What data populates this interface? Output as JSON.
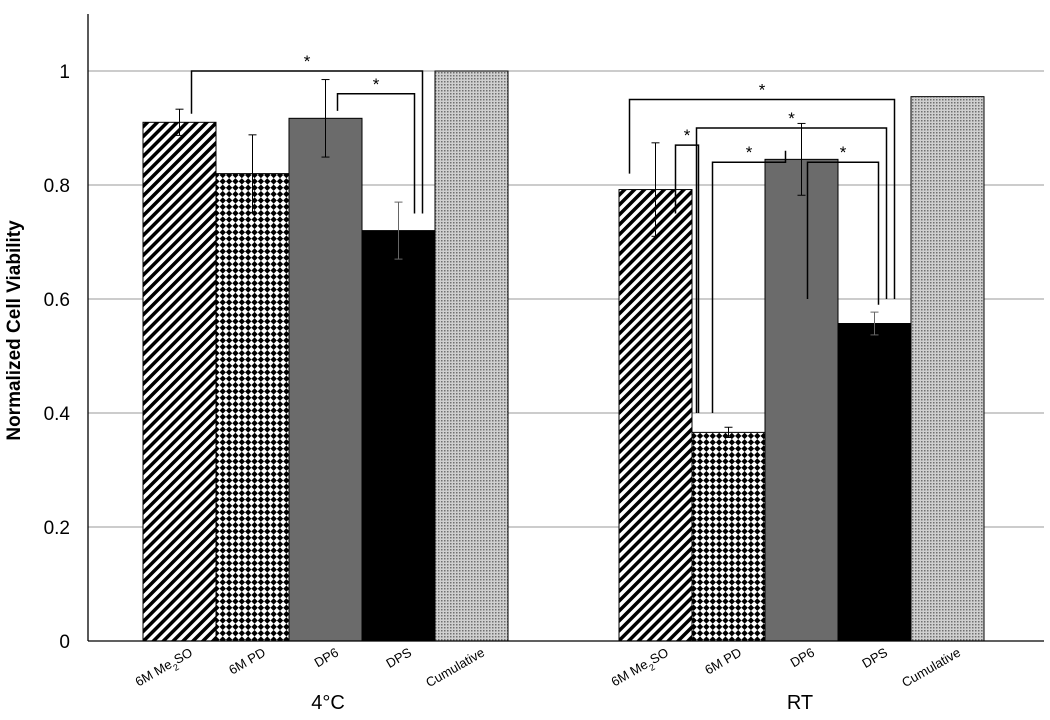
{
  "chart_data": {
    "type": "bar",
    "ylabel": "Normalized Cell Viability",
    "xlabel": "",
    "ylim": [
      0,
      1.1
    ],
    "yticks": [
      0,
      0.2,
      0.4,
      0.6,
      0.8,
      1
    ],
    "ytick_labels": [
      "0",
      "0.2",
      "0.4",
      "0.6",
      "0.8",
      "1"
    ],
    "grid": true,
    "groups": [
      {
        "name": "4°C",
        "categories": [
          {
            "pre": "6M Me",
            "sub": "2",
            "post": "SO"
          },
          {
            "pre": "6M PD",
            "sub": "",
            "post": ""
          },
          {
            "pre": "DP6",
            "sub": "",
            "post": ""
          },
          {
            "pre": "DPS",
            "sub": "",
            "post": ""
          },
          {
            "pre": "Cumulative",
            "sub": "",
            "post": ""
          }
        ],
        "values": [
          0.91,
          0.82,
          0.917,
          0.72,
          1.0
        ],
        "errors": [
          0.023,
          0.068,
          0.068,
          0.05,
          null
        ],
        "significance": [
          {
            "a": 0,
            "b": 3,
            "level": 1.0,
            "label": "*"
          },
          {
            "a": 2,
            "b": 3,
            "level": 0.96,
            "label": "*"
          }
        ]
      },
      {
        "name": "RT",
        "categories": [
          {
            "pre": "6M Me",
            "sub": "2",
            "post": "SO"
          },
          {
            "pre": "6M PD",
            "sub": "",
            "post": ""
          },
          {
            "pre": "DP6",
            "sub": "",
            "post": ""
          },
          {
            "pre": "DPS",
            "sub": "",
            "post": ""
          },
          {
            "pre": "Cumulative",
            "sub": "",
            "post": ""
          }
        ],
        "values": [
          0.792,
          0.366,
          0.845,
          0.557,
          0.955
        ],
        "errors": [
          0.082,
          0.009,
          0.063,
          0.02,
          null
        ],
        "significance": [
          {
            "a": 0,
            "b": 3,
            "level": 0.95,
            "label": "*"
          },
          {
            "a": 1,
            "b": 3,
            "level": 0.9,
            "label": "*"
          },
          {
            "a": 1,
            "b": 2,
            "level": 0.84,
            "label": "*"
          },
          {
            "a": 0,
            "b": 1,
            "level": 0.87,
            "label": "*"
          },
          {
            "a": 2,
            "b": 3,
            "level": 0.84,
            "label": "*"
          }
        ]
      }
    ],
    "bar_patterns": [
      "diagonal-hatch",
      "checker-diamond",
      "solid-gray",
      "solid-black",
      "fine-dots"
    ],
    "colors": {
      "gray": "#6b6b6b",
      "black": "#000000",
      "grid": "#999999"
    }
  }
}
